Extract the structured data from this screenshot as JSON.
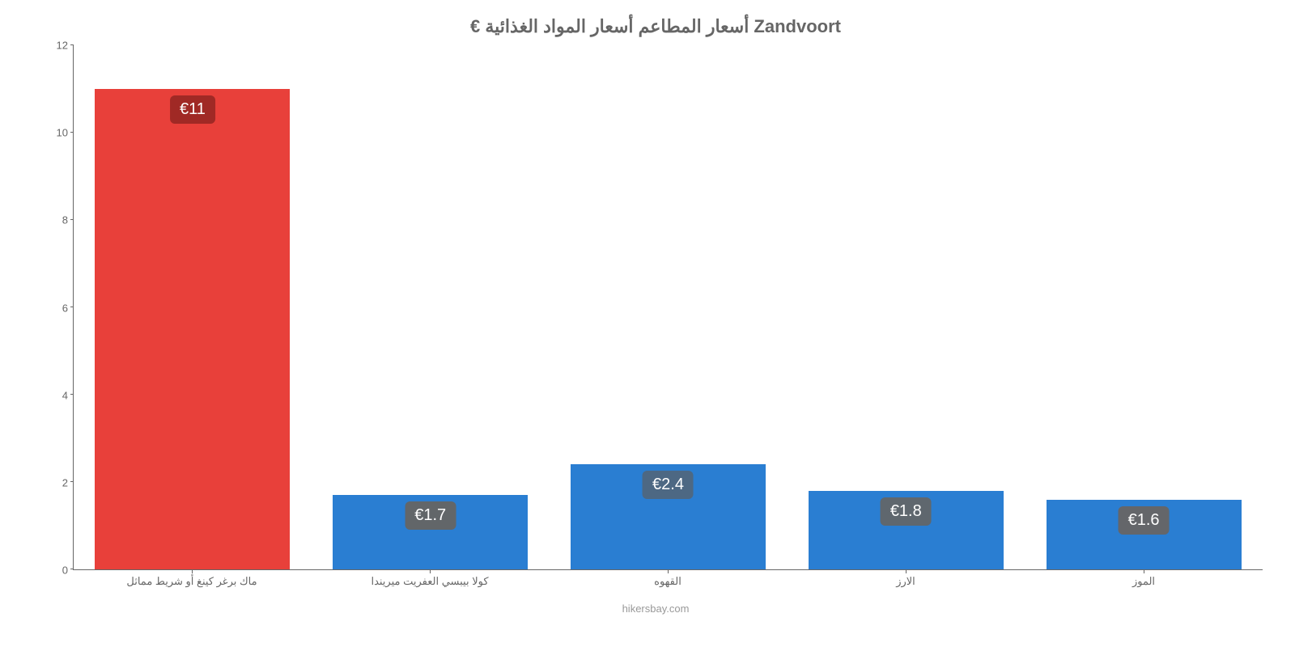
{
  "chart": {
    "type": "bar",
    "title": "€ أسعار المطاعم أسعار المواد الغذائية Zandvoort",
    "title_fontsize": 22,
    "title_color": "#666666",
    "ylim": [
      0,
      12
    ],
    "yticks": [
      0,
      2,
      4,
      6,
      8,
      10,
      12
    ],
    "axis_color": "#666666",
    "tick_font_color": "#666666",
    "tick_fontsize": 13,
    "background_color": "#ffffff",
    "bar_width": 0.82,
    "bars": [
      {
        "category": "ماك برغر كينغ أو شريط مماثل",
        "value": 11,
        "display": "€11",
        "color": "#e8403a",
        "label_bg": "#a02925",
        "label_color": "#ffffff"
      },
      {
        "category": "كولا بيبسي العفريت ميريندا",
        "value": 1.7,
        "display": "€1.7",
        "color": "#2a7ed2",
        "label_bg": "#626669",
        "label_color": "#ffffff"
      },
      {
        "category": "القهوه",
        "value": 2.4,
        "display": "€2.4",
        "color": "#2a7ed2",
        "label_bg": "#4d6883",
        "label_color": "#ffffff"
      },
      {
        "category": "الارز",
        "value": 1.8,
        "display": "€1.8",
        "color": "#2a7ed2",
        "label_bg": "#5f676e",
        "label_color": "#ffffff"
      },
      {
        "category": "الموز",
        "value": 1.6,
        "display": "€1.6",
        "color": "#2a7ed2",
        "label_bg": "#64666a",
        "label_color": "#ffffff"
      }
    ],
    "attribution": "hikersbay.com",
    "attribution_color": "#999999"
  }
}
